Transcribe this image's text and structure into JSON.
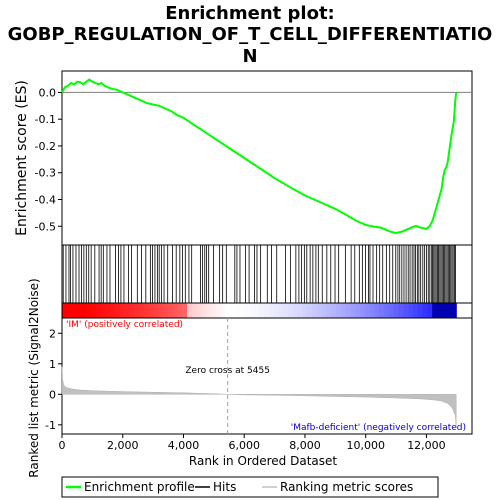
{
  "chart_data": {
    "type": "line",
    "title_line1": "Enrichment plot:",
    "title_line2": "GOBP_REGULATION_OF_T_CELL_DIFFERENTIATIO",
    "title_line3": "N",
    "top_panel": {
      "ylabel": "Enrichment score (ES)",
      "ylim": [
        -0.57,
        0.08
      ],
      "yticks": [
        0.0,
        -0.1,
        -0.2,
        -0.3,
        -0.4,
        -0.5
      ],
      "ytick_labels": [
        "0.0",
        "-0.1",
        "-0.2",
        "-0.3",
        "-0.4",
        "-0.5"
      ],
      "series": [
        {
          "name": "Enrichment profile",
          "color": "#00ff00",
          "x": [
            0,
            100,
            200,
            300,
            400,
            500,
            600,
            700,
            800,
            900,
            1000,
            1100,
            1200,
            1300,
            1400,
            1500,
            1600,
            1700,
            1800,
            2000,
            2200,
            2400,
            2600,
            2800,
            3000,
            3200,
            3400,
            3600,
            3800,
            4000,
            4200,
            4400,
            4600,
            4800,
            5000,
            5400,
            6000,
            6600,
            7000,
            7600,
            8000,
            8600,
            9000,
            9400,
            9700,
            10000,
            10200,
            10500,
            10800,
            11000,
            11200,
            11400,
            11600,
            11700,
            11800,
            12000,
            12100,
            12200,
            12300,
            12400,
            12500,
            12550,
            12600,
            12650,
            12700,
            12750,
            12800,
            12850,
            12900,
            12950,
            12980
          ],
          "y": [
            0.0,
            0.02,
            0.025,
            0.035,
            0.03,
            0.04,
            0.038,
            0.03,
            0.04,
            0.048,
            0.04,
            0.035,
            0.03,
            0.035,
            0.025,
            0.02,
            0.015,
            0.012,
            0.01,
            0.0,
            -0.01,
            -0.02,
            -0.03,
            -0.04,
            -0.045,
            -0.05,
            -0.06,
            -0.07,
            -0.085,
            -0.095,
            -0.11,
            -0.125,
            -0.14,
            -0.155,
            -0.17,
            -0.2,
            -0.245,
            -0.29,
            -0.32,
            -0.36,
            -0.385,
            -0.415,
            -0.435,
            -0.46,
            -0.48,
            -0.495,
            -0.5,
            -0.505,
            -0.52,
            -0.525,
            -0.52,
            -0.51,
            -0.5,
            -0.5,
            -0.505,
            -0.51,
            -0.5,
            -0.48,
            -0.44,
            -0.4,
            -0.36,
            -0.32,
            -0.29,
            -0.28,
            -0.26,
            -0.22,
            -0.18,
            -0.14,
            -0.11,
            -0.03,
            0.0
          ]
        }
      ]
    },
    "hits": {
      "name": "Hits",
      "color": "#000000",
      "x": [
        40,
        130,
        230,
        280,
        360,
        460,
        560,
        640,
        720,
        800,
        880,
        960,
        1080,
        1220,
        1290,
        1360,
        1480,
        1580,
        1760,
        1860,
        1940,
        2040,
        2190,
        2290,
        2480,
        2620,
        2760,
        2910,
        2980,
        3060,
        3140,
        3200,
        3280,
        3360,
        3480,
        3640,
        3760,
        3880,
        3970,
        4060,
        4180,
        4270,
        4560,
        4630,
        4700,
        4760,
        4830,
        4990,
        5190,
        5290,
        5410,
        5690,
        5760,
        5860,
        6040,
        6160,
        6340,
        6420,
        6540,
        6760,
        6900,
        7070,
        7360,
        7520,
        7700,
        7800,
        7890,
        7980,
        8060,
        8170,
        8260,
        8360,
        8440,
        8570,
        8720,
        8850,
        8990,
        9110,
        9330,
        9520,
        9640,
        9790,
        9890,
        9990,
        10090,
        10140,
        10240,
        10360,
        10460,
        10560,
        10680,
        10790,
        10890,
        10990,
        11060,
        11120,
        11190,
        11260,
        11330,
        11400,
        11460,
        11530,
        11590,
        11640,
        11700,
        11750,
        11810,
        11880,
        11940,
        12000,
        12060,
        12110,
        12160,
        12200,
        12240,
        12280,
        12320,
        12360,
        12400,
        12440,
        12480,
        12520,
        12560,
        12600,
        12640,
        12680,
        12720,
        12760,
        12800,
        12840,
        12880,
        12920,
        12960
      ]
    },
    "heatmap_bar": {
      "label_left": "'IM' (positively correlated)",
      "label_left_color": "#ff0000",
      "positive_color": "#ff0000",
      "negative_color": "#0000ff",
      "neutral_color": "#ffffff"
    },
    "bottom_panel": {
      "ylabel": "Ranked list metric (Signal2Noise)",
      "xlabel": "Rank in Ordered Dataset",
      "ylim": [
        -1.3,
        2.5
      ],
      "yticks": [
        -1,
        0,
        1,
        2
      ],
      "ytick_labels": [
        "-1",
        "0",
        "1",
        "2"
      ],
      "xlim": [
        0,
        13500
      ],
      "xticks": [
        0,
        2000,
        4000,
        6000,
        8000,
        10000,
        12000
      ],
      "xtick_labels": [
        "0",
        "2,000",
        "4,000",
        "6,000",
        "8,000",
        "10,000",
        "12,000"
      ],
      "zero_cross_label": "Zero cross at 5455",
      "zero_cross_x": 5455,
      "negative_label": "'Mafb-deficient' (negatively correlated)",
      "negative_label_color": "#0000cc",
      "metric_x": [
        0,
        20,
        60,
        150,
        300,
        600,
        1000,
        2000,
        3000,
        4000,
        5000,
        5455,
        6000,
        7000,
        8000,
        9000,
        10000,
        11000,
        11800,
        12200,
        12500,
        12700,
        12850,
        12950,
        12980
      ],
      "metric_y": [
        0.9,
        0.5,
        0.3,
        0.22,
        0.18,
        0.14,
        0.12,
        0.09,
        0.07,
        0.05,
        0.02,
        0.0,
        -0.02,
        -0.03,
        -0.05,
        -0.07,
        -0.09,
        -0.12,
        -0.15,
        -0.18,
        -0.22,
        -0.3,
        -0.45,
        -0.7,
        -1.1
      ]
    },
    "legend": {
      "items": [
        {
          "label": "Enrichment profile",
          "color": "#00ff00"
        },
        {
          "label": "Hits",
          "color": "#000000"
        },
        {
          "label": "Ranking metric scores",
          "color": "#c0c0c0"
        }
      ]
    }
  }
}
